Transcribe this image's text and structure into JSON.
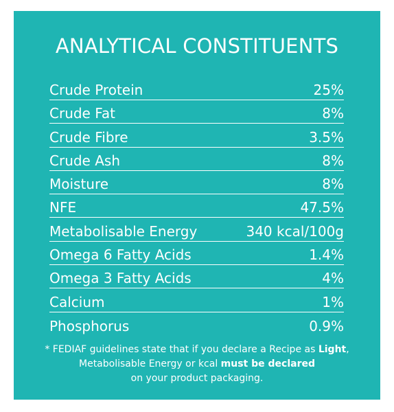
{
  "title": "ANALYTICAL CONSTITUENTS",
  "rows": [
    {
      "label": "Crude Protein",
      "value": "25%"
    },
    {
      "label": "Crude Fat",
      "value": "8%"
    },
    {
      "label": "Crude Fibre",
      "value": "3.5%"
    },
    {
      "label": "Crude Ash",
      "value": "8%"
    },
    {
      "label": "Moisture",
      "value": "8%"
    },
    {
      "label": "NFE",
      "value": "47.5%"
    },
    {
      "label": "Metabolisable Energy",
      "value": "340 kcal/100g"
    },
    {
      "label": "Omega 6 Fatty Acids",
      "value": "1.4%"
    },
    {
      "label": "Omega 3 Fatty Acids",
      "value": "4%"
    },
    {
      "label": "Calcium",
      "value": "1%"
    },
    {
      "label": "Phosphorus",
      "value": "0.9%"
    }
  ],
  "footnote": {
    "part1": "* FEDIAF guidelines state that if you declare a Recipe as ",
    "bold1": "Light",
    "part2": ",",
    "part3": "Metabolisable Energy or kcal ",
    "bold2": "must be declared",
    "part4": "on your product packaging."
  },
  "colors": {
    "background": "#1fb5b3",
    "text": "#ffffff"
  }
}
